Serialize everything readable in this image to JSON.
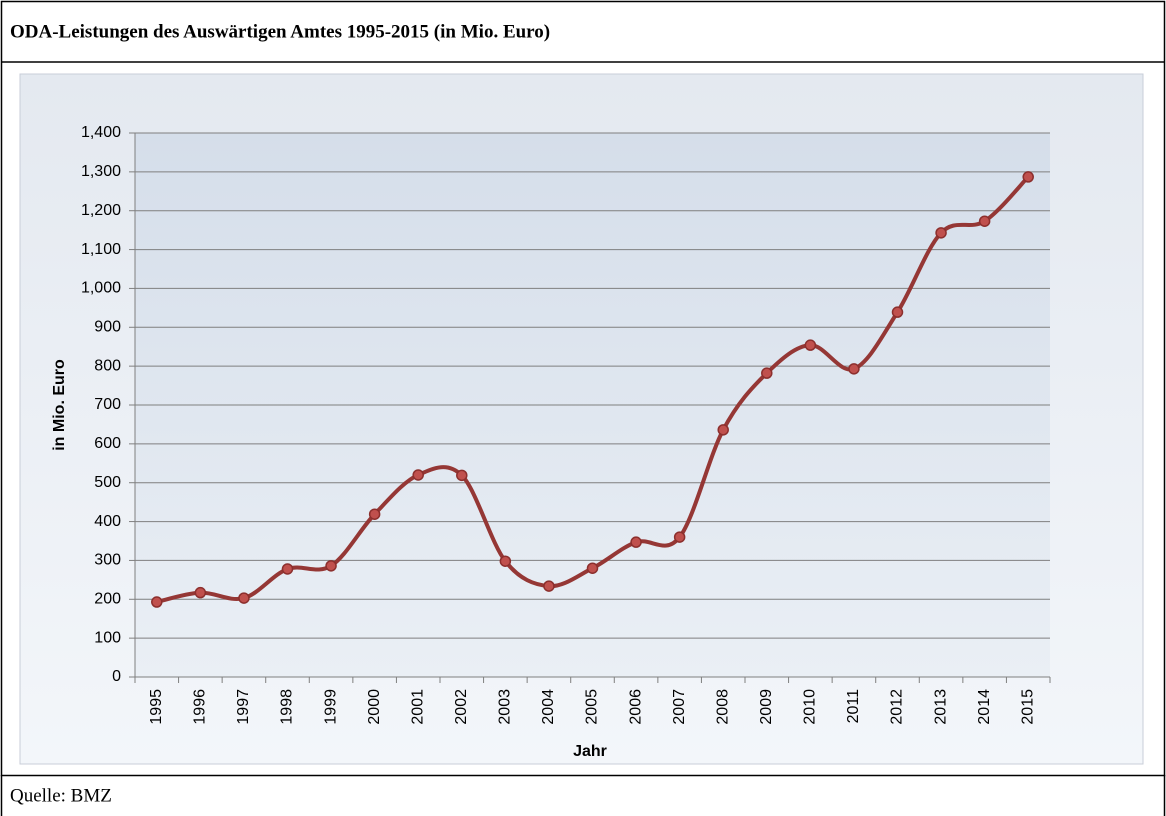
{
  "chart_data": {
    "type": "line",
    "title": "ODA-Leistungen des Auswärtigen Amtes 1995-2015 (in Mio. Euro)",
    "source": "Quelle: BMZ",
    "x_label": "Jahr",
    "y_label": "in Mio. Euro",
    "categories": [
      "1995",
      "1996",
      "1997",
      "1998",
      "1999",
      "2000",
      "2001",
      "2002",
      "2003",
      "2004",
      "2005",
      "2006",
      "2007",
      "2008",
      "2009",
      "2010",
      "2011",
      "2012",
      "2013",
      "2014",
      "2015"
    ],
    "series": [
      {
        "name": "ODA",
        "color": "#953735",
        "values": [
          193,
          217,
          203,
          278,
          286,
          419,
          520,
          519,
          298,
          234,
          280,
          347,
          360,
          636,
          782,
          854,
          793,
          939,
          1143,
          1173,
          1287
        ]
      }
    ],
    "ylim": [
      0,
      1400
    ],
    "yticks": [
      0,
      100,
      200,
      300,
      400,
      500,
      600,
      700,
      800,
      900,
      {
        "value": 1000,
        "label": "1,000"
      },
      {
        "value": 1100,
        "label": "1,100"
      },
      {
        "value": 1200,
        "label": "1,200"
      },
      {
        "value": 1300,
        "label": "1,300"
      },
      {
        "value": 1400,
        "label": "1,400"
      }
    ],
    "grid": true
  }
}
